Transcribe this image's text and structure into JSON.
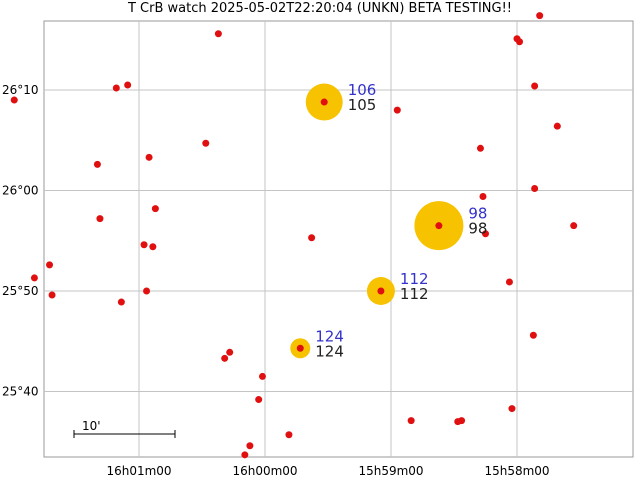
{
  "title": "T CrB watch 2025-05-02T22:20:04 (UNKN) BETA TESTING!!",
  "chart_data": {
    "type": "scatter",
    "y_ticks": [
      {
        "label": "26°10",
        "dec_arcmin": 1570
      },
      {
        "label": "26°00",
        "dec_arcmin": 1560
      },
      {
        "label": "25°50",
        "dec_arcmin": 1550
      },
      {
        "label": "25°40",
        "dec_arcmin": 1540
      }
    ],
    "x_ticks": [
      {
        "label": "16h01m00",
        "ra_min": 961
      },
      {
        "label": "16h00m00",
        "ra_min": 960
      },
      {
        "label": "15h59m00",
        "ra_min": 959
      },
      {
        "label": "15h58m00",
        "ra_min": 958
      }
    ],
    "scale_bar_label": "10'",
    "comparison_stars": [
      {
        "upper": "106",
        "lower": "105",
        "ra_min": 959.53,
        "dec_arcmin": 1568.8
      },
      {
        "upper": "98",
        "lower": "98",
        "ra_min": 958.62,
        "dec_arcmin": 1556.5
      },
      {
        "upper": "112",
        "lower": "112",
        "ra_min": 959.08,
        "dec_arcmin": 1550.0
      },
      {
        "upper": "124",
        "lower": "124",
        "ra_min": 959.72,
        "dec_arcmin": 1544.3
      }
    ],
    "field_stars": [
      [
        961.99,
        1569.0
      ],
      [
        961.18,
        1570.2
      ],
      [
        961.09,
        1570.5
      ],
      [
        960.37,
        1575.6
      ],
      [
        961.33,
        1562.6
      ],
      [
        960.92,
        1563.3
      ],
      [
        960.47,
        1564.7
      ],
      [
        960.87,
        1558.2
      ],
      [
        961.31,
        1557.2
      ],
      [
        960.96,
        1554.6
      ],
      [
        960.89,
        1554.4
      ],
      [
        961.71,
        1552.6
      ],
      [
        961.83,
        1551.3
      ],
      [
        961.69,
        1549.6
      ],
      [
        961.14,
        1548.9
      ],
      [
        960.94,
        1550.0
      ],
      [
        960.32,
        1543.3
      ],
      [
        960.28,
        1543.9
      ],
      [
        960.02,
        1541.5
      ],
      [
        960.05,
        1539.2
      ],
      [
        960.12,
        1534.6
      ],
      [
        960.16,
        1533.7
      ],
      [
        959.63,
        1555.3
      ],
      [
        959.81,
        1535.7
      ],
      [
        958.84,
        1537.1
      ],
      [
        958.47,
        1537.0
      ],
      [
        958.44,
        1537.1
      ],
      [
        958.95,
        1568.0
      ],
      [
        958.29,
        1564.2
      ],
      [
        958.27,
        1559.4
      ],
      [
        958.25,
        1555.7
      ],
      [
        958.06,
        1550.9
      ],
      [
        958.0,
        1575.1
      ],
      [
        957.98,
        1574.8
      ],
      [
        957.82,
        1577.4
      ],
      [
        957.86,
        1570.4
      ],
      [
        957.86,
        1560.2
      ],
      [
        957.68,
        1566.4
      ],
      [
        957.55,
        1556.5
      ],
      [
        957.87,
        1545.6
      ],
      [
        958.04,
        1538.3
      ]
    ]
  }
}
